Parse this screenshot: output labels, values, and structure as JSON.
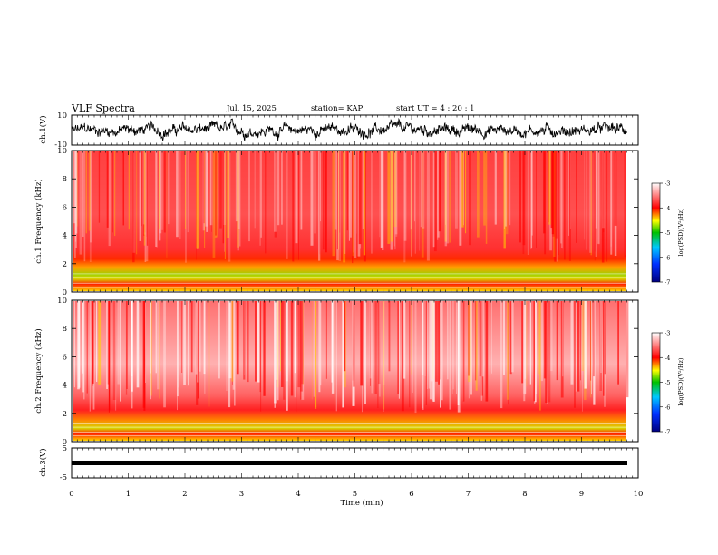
{
  "header": {
    "title": "VLF Spectra",
    "date": "Jul. 15, 2025",
    "station": "station= KAP",
    "start_ut": "start UT =  4 : 20 : 1"
  },
  "chart_data": [
    {
      "type": "line",
      "name": "ch1-waveform",
      "ylabel": "ch.1(V)",
      "ylim": [
        -10,
        10
      ],
      "y_tick_labels": [
        "10",
        "-10"
      ],
      "xlim": [
        0,
        10
      ],
      "description_mean": 0,
      "description": "noisy waveform"
    },
    {
      "type": "heatmap",
      "name": "ch1-spectrogram",
      "ylabel": "ch.1 Frequency (kHz)",
      "ylim": [
        0,
        10
      ],
      "y_tick_labels": [
        "0",
        "2",
        "4",
        "6",
        "8",
        "10"
      ],
      "xlim": [
        0,
        9.8
      ],
      "colorbar": {
        "label": "log(PSD)(V²/Hz)",
        "range": [
          -7,
          -3
        ],
        "tick_labels": [
          "-3",
          "-4",
          "-5",
          "-6",
          "-7"
        ]
      }
    },
    {
      "type": "heatmap",
      "name": "ch2-spectrogram",
      "ylabel": "ch.2 Frequency (kHz)",
      "ylim": [
        0,
        10
      ],
      "y_tick_labels": [
        "0",
        "2",
        "4",
        "6",
        "8",
        "10"
      ],
      "xlim": [
        0,
        9.8
      ],
      "colorbar": {
        "label": "log(PSD)(V²/Hz)",
        "range": [
          -7,
          -3
        ],
        "tick_labels": [
          "-3",
          "-4",
          "-5",
          "-6",
          "-7"
        ]
      }
    },
    {
      "type": "line",
      "name": "ch3-waveform",
      "ylabel": "ch.3(V)",
      "ylim": [
        -5,
        5
      ],
      "y_tick_labels": [
        "5",
        "-5"
      ],
      "xlim": [
        0,
        10
      ],
      "description_mean": -0.5
    }
  ],
  "xaxis": {
    "label": "Time (min)",
    "range": [
      0,
      10
    ],
    "tick_labels": [
      "0",
      "1",
      "2",
      "3",
      "4",
      "5",
      "6",
      "7",
      "8",
      "9",
      "10"
    ]
  },
  "colors": {
    "low": "#00008b",
    "mid_low": "#00c000",
    "mid": "#ffff00",
    "high": "#ff0000",
    "max": "#ffffff"
  }
}
